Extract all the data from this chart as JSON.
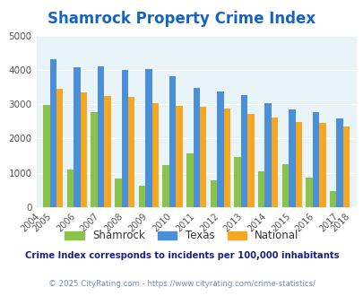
{
  "title": "Shamrock Property Crime Index",
  "title_color": "#1565c0",
  "years": [
    2004,
    2005,
    2006,
    2007,
    2008,
    2009,
    2010,
    2011,
    2012,
    2013,
    2014,
    2015,
    2016,
    2017,
    2018
  ],
  "shamrock": [
    null,
    2970,
    1100,
    2760,
    840,
    620,
    1240,
    1580,
    790,
    1450,
    1040,
    1250,
    870,
    460,
    null
  ],
  "texas": [
    null,
    4320,
    4080,
    4100,
    3990,
    4020,
    3810,
    3470,
    3370,
    3260,
    3040,
    2840,
    2760,
    2580,
    null
  ],
  "national": [
    null,
    3440,
    3340,
    3240,
    3210,
    3030,
    2940,
    2920,
    2870,
    2720,
    2600,
    2490,
    2450,
    2360,
    null
  ],
  "shamrock_color": "#8bc34a",
  "texas_color": "#4a90d9",
  "national_color": "#f5a623",
  "bg_color": "#e8f4f8",
  "ylim": [
    0,
    5000
  ],
  "yticks": [
    0,
    1000,
    2000,
    3000,
    4000,
    5000
  ],
  "legend_labels": [
    "Shamrock",
    "Texas",
    "National"
  ],
  "footnote": "Crime Index corresponds to incidents per 100,000 inhabitants",
  "footnote_color": "#1a237e",
  "copyright": "© 2025 CityRating.com - https://www.cityrating.com/crime-statistics/",
  "copyright_color": "#7090c0"
}
